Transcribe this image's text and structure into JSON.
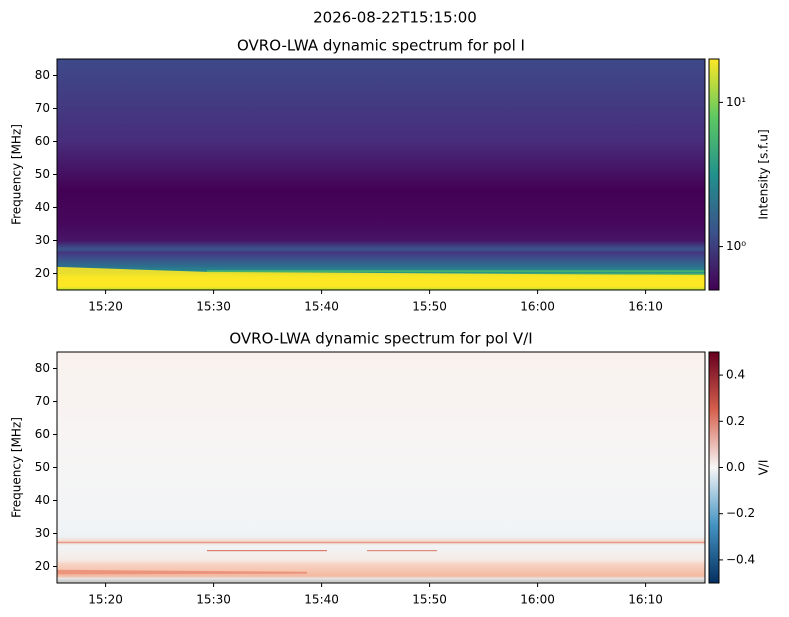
{
  "title": "2026-08-22T15:15:00",
  "chart_data": [
    {
      "type": "heatmap",
      "title": "OVRO-LWA dynamic spectrum for pol I",
      "ylabel": "Frequency [MHz]",
      "xlim": [
        915.5,
        975.5
      ],
      "xticks": [
        {
          "value": 920,
          "label": "15:20"
        },
        {
          "value": 930,
          "label": "15:30"
        },
        {
          "value": 940,
          "label": "15:40"
        },
        {
          "value": 950,
          "label": "15:50"
        },
        {
          "value": 960,
          "label": "16:00"
        },
        {
          "value": 970,
          "label": "16:10"
        }
      ],
      "ylim": [
        15,
        85
      ],
      "yticks": [
        20,
        30,
        40,
        50,
        60,
        70,
        80
      ],
      "colorbar": {
        "label": "Intensity [s.f.u]",
        "scale": "log",
        "cmap": "viridis",
        "lim": [
          0.5,
          20
        ],
        "ticks": [
          {
            "value": 1,
            "label": "10⁰"
          },
          {
            "value": 10,
            "label": "10¹"
          }
        ]
      }
    },
    {
      "type": "heatmap",
      "title": "OVRO-LWA dynamic spectrum for pol V/I",
      "ylabel": "Frequency [MHz]",
      "xlim": [
        915.5,
        975.5
      ],
      "xticks": [
        {
          "value": 920,
          "label": "15:20"
        },
        {
          "value": 930,
          "label": "15:30"
        },
        {
          "value": 940,
          "label": "15:40"
        },
        {
          "value": 950,
          "label": "15:50"
        },
        {
          "value": 960,
          "label": "16:00"
        },
        {
          "value": 970,
          "label": "16:10"
        }
      ],
      "ylim": [
        15,
        85
      ],
      "yticks": [
        20,
        30,
        40,
        50,
        60,
        70,
        80
      ],
      "colorbar": {
        "label": "V/I",
        "scale": "linear",
        "cmap": "RdBu_r",
        "lim": [
          -0.5,
          0.5
        ],
        "ticks": [
          {
            "value": -0.4,
            "label": "−0.4"
          },
          {
            "value": -0.2,
            "label": "−0.2"
          },
          {
            "value": 0,
            "label": "0.0"
          },
          0.2,
          0.4
        ]
      }
    }
  ]
}
